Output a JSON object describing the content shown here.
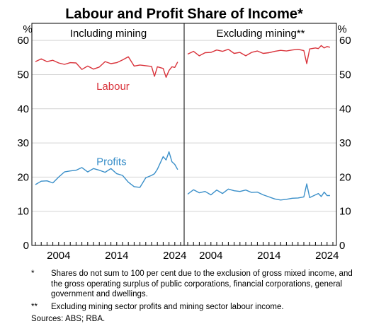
{
  "chart_data": {
    "type": "line",
    "title": "Labour and Profit Share of Income*",
    "unit_left": "%",
    "unit_right": "%",
    "ylim": [
      0,
      65
    ],
    "yticks": [
      0,
      10,
      20,
      30,
      40,
      50,
      60
    ],
    "xlim": [
      2000,
      2025
    ],
    "xticks": [
      2004,
      2014,
      2024
    ],
    "grid": true,
    "panels": [
      {
        "title": "Including mining",
        "series": [
          {
            "name": "Labour",
            "color": "#d9323a",
            "x": [
              2000.0,
              2001.0,
              2002.0,
              2003.0,
              2004.0,
              2005.0,
              2006.0,
              2007.0,
              2008.0,
              2009.0,
              2010.0,
              2011.0,
              2012.0,
              2013.0,
              2014.0,
              2015.0,
              2016.0,
              2017.0,
              2018.0,
              2019.0,
              2020.0,
              2020.5,
              2021.0,
              2022.0,
              2022.5,
              2023.0,
              2023.5,
              2024.0,
              2024.5
            ],
            "y": [
              53.8,
              54.6,
              53.8,
              54.2,
              53.4,
              53.0,
              53.5,
              53.4,
              51.5,
              52.5,
              51.6,
              52.2,
              53.8,
              53.2,
              53.5,
              54.3,
              55.2,
              52.5,
              52.8,
              52.6,
              52.4,
              49.5,
              52.3,
              51.8,
              49.2,
              51.2,
              52.3,
              52.1,
              53.7
            ]
          },
          {
            "name": "Profits",
            "color": "#3a8fc9",
            "x": [
              2000.0,
              2001.0,
              2002.0,
              2003.0,
              2004.0,
              2005.0,
              2006.0,
              2007.0,
              2008.0,
              2009.0,
              2010.0,
              2011.0,
              2012.0,
              2013.0,
              2014.0,
              2015.0,
              2016.0,
              2017.0,
              2018.0,
              2019.0,
              2020.0,
              2020.5,
              2021.0,
              2022.0,
              2022.5,
              2023.0,
              2023.5,
              2024.0,
              2024.5
            ],
            "y": [
              17.8,
              18.8,
              18.9,
              18.3,
              20.0,
              21.5,
              21.8,
              22.0,
              22.8,
              21.5,
              22.5,
              22.0,
              21.4,
              22.5,
              21.0,
              20.5,
              18.5,
              17.2,
              17.0,
              19.8,
              20.5,
              21.0,
              22.3,
              26.0,
              25.0,
              27.4,
              24.5,
              23.7,
              22.2
            ]
          }
        ]
      },
      {
        "title": "Excluding mining**",
        "series": [
          {
            "name": "Labour",
            "color": "#d9323a",
            "x": [
              2000.0,
              2001.0,
              2002.0,
              2003.0,
              2004.0,
              2005.0,
              2006.0,
              2007.0,
              2008.0,
              2009.0,
              2010.0,
              2011.0,
              2012.0,
              2013.0,
              2014.0,
              2015.0,
              2016.0,
              2017.0,
              2018.0,
              2019.0,
              2020.0,
              2020.5,
              2021.0,
              2022.0,
              2022.5,
              2023.0,
              2023.5,
              2024.0,
              2024.5
            ],
            "y": [
              56.0,
              56.8,
              55.5,
              56.4,
              56.5,
              57.2,
              56.8,
              57.4,
              56.2,
              56.5,
              55.5,
              56.5,
              56.9,
              56.2,
              56.4,
              56.8,
              57.1,
              56.9,
              57.2,
              57.4,
              57.0,
              53.2,
              57.5,
              57.8,
              57.6,
              58.5,
              57.8,
              58.2,
              58.0
            ]
          },
          {
            "name": "Profits",
            "color": "#3a8fc9",
            "x": [
              2000.0,
              2001.0,
              2002.0,
              2003.0,
              2004.0,
              2005.0,
              2006.0,
              2007.0,
              2008.0,
              2009.0,
              2010.0,
              2011.0,
              2012.0,
              2013.0,
              2014.0,
              2015.0,
              2016.0,
              2017.0,
              2018.0,
              2019.0,
              2020.0,
              2020.5,
              2021.0,
              2022.0,
              2022.5,
              2023.0,
              2023.5,
              2024.0,
              2024.5
            ],
            "y": [
              15.0,
              16.3,
              15.4,
              15.8,
              14.8,
              16.2,
              15.2,
              16.5,
              16.0,
              15.8,
              16.2,
              15.5,
              15.6,
              14.8,
              14.2,
              13.6,
              13.3,
              13.5,
              13.8,
              13.9,
              14.2,
              18.0,
              14.0,
              14.8,
              15.2,
              14.3,
              15.6,
              14.6,
              14.6
            ]
          }
        ]
      }
    ],
    "series_labels": [
      {
        "name": "Labour",
        "panel": 0,
        "anchor_x": 2010.5,
        "anchor_y": 45.5,
        "color": "#d9323a"
      },
      {
        "name": "Profits",
        "panel": 0,
        "anchor_x": 2010.5,
        "anchor_y": 23.5,
        "color": "#3a8fc9"
      }
    ]
  },
  "footnotes": [
    {
      "mark": "*",
      "text": "Shares do not sum to 100 per cent due to the exclusion of gross mixed income, and the gross operating surplus of public corporations, financial corporations, general government and dwellings."
    },
    {
      "mark": "**",
      "text": "Excluding mining sector profits and mining sector labour income."
    }
  ],
  "sources": "Sources: ABS; RBA."
}
